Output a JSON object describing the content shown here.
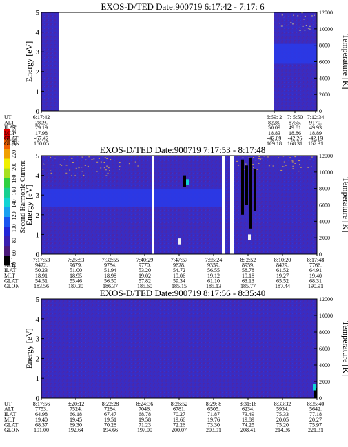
{
  "colorbar": {
    "label": "Second Harmonic Current",
    "ticks": [
      "40",
      "60",
      "80",
      "100",
      "120",
      "140",
      "160",
      "180",
      "200",
      "220",
      "240",
      "250"
    ],
    "colors": [
      "#000000",
      "#4b1a7a",
      "#3a1fb0",
      "#2226d8",
      "#1a55f0",
      "#1aa0f0",
      "#12d4d4",
      "#18d090",
      "#30d040",
      "#a8e020",
      "#f0f000",
      "#f0a000",
      "#f06000",
      "#e00000"
    ]
  },
  "chart_data": [
    {
      "type": "heatmap",
      "title": "EXOS-D/TED   Date:900719   6:17:42 - 7:17: 6",
      "ylabel": "Energy [eV]",
      "y2label": "Temperature [K]",
      "ylim": [
        0,
        5
      ],
      "y2lim": [
        0,
        12000
      ],
      "yticks": [
        "0",
        "1",
        "2",
        "3",
        "4",
        "5"
      ],
      "y2ticks": [
        "0",
        "2000",
        "4000",
        "6000",
        "8000",
        "10000",
        "12000"
      ],
      "background": "#3b2cc0",
      "data_gaps": [
        [
          0.065,
          0.845
        ]
      ],
      "bands": [
        {
          "from": 0.845,
          "to": 1.0,
          "elo": 2.4,
          "ehi": 3.4,
          "color": "#2a3ae8"
        }
      ],
      "speckle": [
        {
          "from": 0.845,
          "to": 1.0,
          "elo": 4.0,
          "ehi": 5.0,
          "color": "#b8b090"
        }
      ],
      "spikes": [],
      "table_rows": [
        "UT",
        "ALT",
        "ILAT",
        "MLT",
        "GLAT",
        "GLON"
      ],
      "table_columns": [
        {
          "frac": 0.0,
          "values": [
            "6:17:42",
            "2809.",
            "79.19",
            "17.98",
            "-67.42",
            "150.05"
          ]
        },
        {
          "frac": 0.845,
          "values": [
            "6:59: 2",
            "8228.",
            "50.09",
            "18.83",
            "-42.69",
            "169.18"
          ]
        },
        {
          "frac": 0.92,
          "values": [
            "7: 5:50",
            "8755.",
            "49.81",
            "18.86",
            "-42.26",
            "168.31"
          ]
        },
        {
          "frac": 0.995,
          "values": [
            "7:12:34",
            "9170.",
            "49.93",
            "18.89",
            "-42.19",
            "167.31"
          ]
        }
      ]
    },
    {
      "type": "heatmap",
      "title": "EXOS-D/TED   Date:900719   7:17:53 - 8:17:48",
      "ylabel": "Energy [eV]",
      "y2label": "Temperature [K]",
      "ylim": [
        0,
        5
      ],
      "y2lim": [
        0,
        12000
      ],
      "yticks": [
        "0",
        "1",
        "2",
        "3",
        "4",
        "5"
      ],
      "y2ticks": [
        "0",
        "2000",
        "4000",
        "6000",
        "8000",
        "10000",
        "12000"
      ],
      "background": "#3b2cc0",
      "data_gaps": [
        [
          0.4,
          0.41
        ],
        [
          0.655,
          0.665
        ],
        [
          0.685,
          0.7
        ]
      ],
      "bands": [
        {
          "from": 0.0,
          "to": 0.66,
          "elo": 2.4,
          "ehi": 3.3,
          "color": "#2a3ae8"
        }
      ],
      "speckle": [
        {
          "from": 0.0,
          "to": 0.35,
          "elo": 4.0,
          "ehi": 5.0,
          "color": "#c8a060"
        },
        {
          "from": 0.7,
          "to": 1.0,
          "elo": 4.2,
          "ehi": 5.0,
          "color": "#c8a060"
        }
      ],
      "spikes": [
        {
          "frac": 0.73,
          "elo": 2.0,
          "ehi": 4.8,
          "color": "#000000"
        },
        {
          "frac": 0.745,
          "elo": 2.5,
          "ehi": 4.5,
          "color": "#000000"
        },
        {
          "frac": 0.76,
          "elo": 1.3,
          "ehi": 4.9,
          "color": "#000000"
        },
        {
          "frac": 0.775,
          "elo": 2.2,
          "ehi": 4.3,
          "color": "#000000"
        },
        {
          "frac": 0.52,
          "elo": 3.4,
          "ehi": 4.0,
          "color": "#000000"
        },
        {
          "frac": 0.5,
          "elo": 0.5,
          "ehi": 0.8,
          "color": "#f0f0f0"
        },
        {
          "frac": 0.755,
          "elo": 0.7,
          "ehi": 1.0,
          "color": "#f0f0f0"
        },
        {
          "frac": 0.53,
          "elo": 3.5,
          "ehi": 3.8,
          "color": "#12d4d4"
        }
      ],
      "table_rows": [
        "UT",
        "ALT",
        "ILAT",
        "MLT",
        "GLAT",
        "GLON"
      ],
      "table_columns": [
        {
          "frac": 0.0,
          "values": [
            "7:17:53",
            "9422.",
            "50.23",
            "18.91",
            "54.51",
            "183.56"
          ]
        },
        {
          "frac": 0.125,
          "values": [
            "7:25:53",
            "9679.",
            "51.00",
            "18.95",
            "55.46",
            "187.30"
          ]
        },
        {
          "frac": 0.25,
          "values": [
            "7:32:55",
            "9784.",
            "51.94",
            "18.98",
            "56.50",
            "186.37"
          ]
        },
        {
          "frac": 0.375,
          "values": [
            "7:40:29",
            "9770.",
            "53.20",
            "19.02",
            "57.82",
            "185.60"
          ]
        },
        {
          "frac": 0.5,
          "values": [
            "7:47:57",
            "9628.",
            "54.72",
            "19.06",
            "59.34",
            "185.15"
          ]
        },
        {
          "frac": 0.625,
          "values": [
            "7:55:24",
            "9359.",
            "56.55",
            "19.12",
            "61.10",
            "185.13"
          ]
        },
        {
          "frac": 0.75,
          "values": [
            "8: 2:52",
            "8959.",
            "58.78",
            "19.18",
            "63.13",
            "185.77"
          ]
        },
        {
          "frac": 0.875,
          "values": [
            "8:10:20",
            "8429.",
            "61.52",
            "19.27",
            "65.52",
            "187.44"
          ]
        },
        {
          "frac": 1.0,
          "values": [
            "8:17:48",
            "7766.",
            "64.91",
            "19.40",
            "68.31",
            "190.91"
          ]
        }
      ]
    },
    {
      "type": "heatmap",
      "title": "EXOS-D/TED   Date:900719   8:17:56 - 8:35:40",
      "ylabel": "Energy [eV]",
      "y2label": "Temperature [K]",
      "ylim": [
        0,
        5
      ],
      "y2lim": [
        0,
        12000
      ],
      "yticks": [
        "0",
        "1",
        "2",
        "3",
        "4",
        "5"
      ],
      "y2ticks": [
        "0",
        "2000",
        "4000",
        "6000",
        "8000",
        "10000",
        "12000"
      ],
      "background": "#3b2cc0",
      "data_gaps": [],
      "bands": [],
      "speckle": [],
      "spikes": [
        {
          "frac": 0.995,
          "elo": 0.0,
          "ehi": 0.5,
          "color": "#000000"
        },
        {
          "frac": 0.99,
          "elo": 0.4,
          "ehi": 0.7,
          "color": "#12d4d4"
        }
      ],
      "table_rows": [
        "UT",
        "ALT",
        "ILAT",
        "MLT",
        "GLAT",
        "GLON"
      ],
      "table_columns": [
        {
          "frac": 0.0,
          "values": [
            "8:17:56",
            "7753.",
            "64.98",
            "19.40",
            "68.37",
            "191.00"
          ]
        },
        {
          "frac": 0.125,
          "values": [
            "8:20:12",
            "7524.",
            "66.18",
            "19.45",
            "69.30",
            "192.64"
          ]
        },
        {
          "frac": 0.25,
          "values": [
            "8:22:28",
            "7284.",
            "67.47",
            "19.51",
            "70.28",
            "194.66"
          ]
        },
        {
          "frac": 0.375,
          "values": [
            "8:24:36",
            "7046.",
            "68.78",
            "19.58",
            "71.23",
            "197.00"
          ]
        },
        {
          "frac": 0.5,
          "values": [
            "8:26:52",
            "6781.",
            "70.27",
            "19.66",
            "72.26",
            "200.07"
          ]
        },
        {
          "frac": 0.625,
          "values": [
            "8:29: 8",
            "6505.",
            "71.87",
            "19.76",
            "73.30",
            "203.91"
          ]
        },
        {
          "frac": 0.75,
          "values": [
            "8:31:16",
            "6234.",
            "73.49",
            "19.89",
            "74.25",
            "208.41"
          ]
        },
        {
          "frac": 0.875,
          "values": [
            "8:33:32",
            "5934.",
            "75.33",
            "20.05",
            "75.20",
            "214.36"
          ]
        },
        {
          "frac": 1.0,
          "values": [
            "8:35:40",
            "5642.",
            "77.18",
            "20.27",
            "75.97",
            "221.31"
          ]
        }
      ]
    }
  ]
}
